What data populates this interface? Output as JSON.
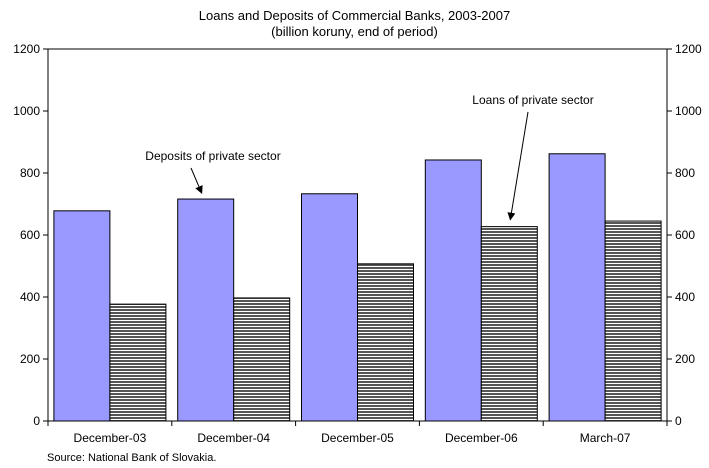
{
  "chart_data": {
    "type": "bar",
    "title": "Loans and Deposits of Commercial Banks, 2003-2007",
    "subtitle": "(billion koruny, end of period)",
    "categories": [
      "December-03",
      "December-04",
      "December-05",
      "December-06",
      "March-07"
    ],
    "series": [
      {
        "name": "Deposits of private sector",
        "values": [
          678,
          716,
          733,
          842,
          862
        ]
      },
      {
        "name": "Loans of private sector",
        "values": [
          377,
          397,
          507,
          627,
          645
        ]
      }
    ],
    "ylim": [
      0,
      1200
    ],
    "yticks": [
      0,
      200,
      400,
      600,
      800,
      1000,
      1200
    ],
    "grid": false,
    "legend": "annotations",
    "annotations": [
      {
        "text": "Deposits of private sector",
        "series": 0,
        "category": 1
      },
      {
        "text": "Loans of private sector",
        "series": 1,
        "category": 3
      }
    ],
    "colors": {
      "deposits": "#9999ff",
      "loans_stripe": "#555555",
      "loans_bg": "#ffffff"
    },
    "source": "Source: National Bank of Slovakia."
  }
}
